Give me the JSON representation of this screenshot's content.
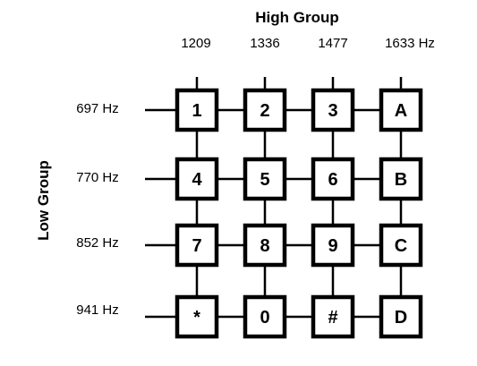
{
  "high_group": {
    "title": "High Group",
    "frequencies": [
      "1209",
      "1336",
      "1477",
      "1633 Hz"
    ]
  },
  "low_group": {
    "title": "Low Group",
    "frequencies": [
      "697 Hz",
      "770 Hz",
      "852 Hz",
      "941 Hz"
    ]
  },
  "keys": [
    [
      "1",
      "2",
      "3",
      "A"
    ],
    [
      "4",
      "5",
      "6",
      "B"
    ],
    [
      "7",
      "8",
      "9",
      "C"
    ],
    [
      "*",
      "0",
      "#",
      "D"
    ]
  ]
}
